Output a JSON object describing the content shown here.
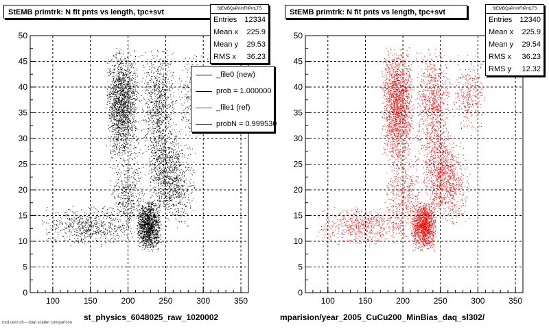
{
  "chart_data": [
    {
      "type": "scatter",
      "title": "StEMB primtrk: N fit pnts vs length, tpc+svt",
      "xlabel": "st_physics_6048025_raw_1020002",
      "ylabel": "",
      "xlim": [
        70,
        360
      ],
      "ylim": [
        0,
        50
      ],
      "x_ticks": [
        100,
        150,
        200,
        250,
        300,
        350
      ],
      "y_ticks": [
        0,
        5,
        10,
        15,
        20,
        25,
        30,
        35,
        40,
        45,
        50
      ],
      "grid": true,
      "marker_color": "#000000",
      "stats": {
        "header": "StEMBQaPrimFitPntLTS",
        "rows": [
          {
            "label": "Entries",
            "value": "12334"
          },
          {
            "label": "Mean x",
            "value": "225.9"
          },
          {
            "label": "Mean y",
            "value": "29.53"
          },
          {
            "label": "RMS x",
            "value": "36.23"
          }
        ]
      },
      "legend": [
        {
          "label": "_file0 (new)",
          "color": "#000000"
        },
        {
          "label": "prob = 1.000000",
          "color": "#000000"
        },
        {
          "label": "_file1 (ref)",
          "color": "#ff0000"
        },
        {
          "label": "probN = 0.999530",
          "color": "#ff0000"
        }
      ],
      "clusters": [
        {
          "x": [
            170,
            215
          ],
          "y": [
            25,
            48
          ],
          "weight": 3.5
        },
        {
          "x": [
            215,
            265
          ],
          "y": [
            25,
            48
          ],
          "weight": 1.6
        },
        {
          "x": [
            265,
            310
          ],
          "y": [
            30,
            47
          ],
          "weight": 0.6
        },
        {
          "x": [
            210,
            245
          ],
          "y": [
            8,
            18
          ],
          "weight": 2.6
        },
        {
          "x": [
            225,
            270
          ],
          "y": [
            15,
            32
          ],
          "weight": 1.4
        },
        {
          "x": [
            245,
            290
          ],
          "y": [
            12,
            30
          ],
          "weight": 0.8
        },
        {
          "x": [
            80,
            210
          ],
          "y": [
            9,
            17
          ],
          "weight": 1.2
        },
        {
          "x": [
            175,
            225
          ],
          "y": [
            10,
            28
          ],
          "weight": 0.9
        }
      ]
    },
    {
      "type": "scatter",
      "title": "StEMB primtrk: N fit pnts vs length, tpc+svt",
      "xlabel": "mparision/year_2005_CuCu200_MinBias_daq_sl302/",
      "ylabel": "",
      "xlim": [
        70,
        360
      ],
      "ylim": [
        0,
        50
      ],
      "x_ticks": [
        100,
        150,
        200,
        250,
        300,
        350
      ],
      "y_ticks": [
        0,
        5,
        10,
        15,
        20,
        25,
        30,
        35,
        40,
        45,
        50
      ],
      "grid": true,
      "marker_color": "#ff0000",
      "stats": {
        "header": "StEMBQaPrimFitPntLTS",
        "rows": [
          {
            "label": "Entries",
            "value": "12340"
          },
          {
            "label": "Mean x",
            "value": "225.9"
          },
          {
            "label": "Mean y",
            "value": "29.54"
          },
          {
            "label": "RMS x",
            "value": "36.23"
          },
          {
            "label": "RMS y",
            "value": "12.32"
          }
        ]
      },
      "clusters": [
        {
          "x": [
            170,
            215
          ],
          "y": [
            25,
            48
          ],
          "weight": 3.5
        },
        {
          "x": [
            215,
            265
          ],
          "y": [
            25,
            48
          ],
          "weight": 1.6
        },
        {
          "x": [
            265,
            310
          ],
          "y": [
            30,
            47
          ],
          "weight": 0.6
        },
        {
          "x": [
            210,
            245
          ],
          "y": [
            8,
            18
          ],
          "weight": 2.6
        },
        {
          "x": [
            225,
            270
          ],
          "y": [
            15,
            32
          ],
          "weight": 1.4
        },
        {
          "x": [
            245,
            290
          ],
          "y": [
            12,
            30
          ],
          "weight": 0.8
        },
        {
          "x": [
            80,
            210
          ],
          "y": [
            9,
            17
          ],
          "weight": 1.2
        },
        {
          "x": [
            175,
            225
          ],
          "y": [
            10,
            28
          ],
          "weight": 0.9
        }
      ]
    }
  ],
  "footer": "root.cern.ch – dual scatter comparison"
}
